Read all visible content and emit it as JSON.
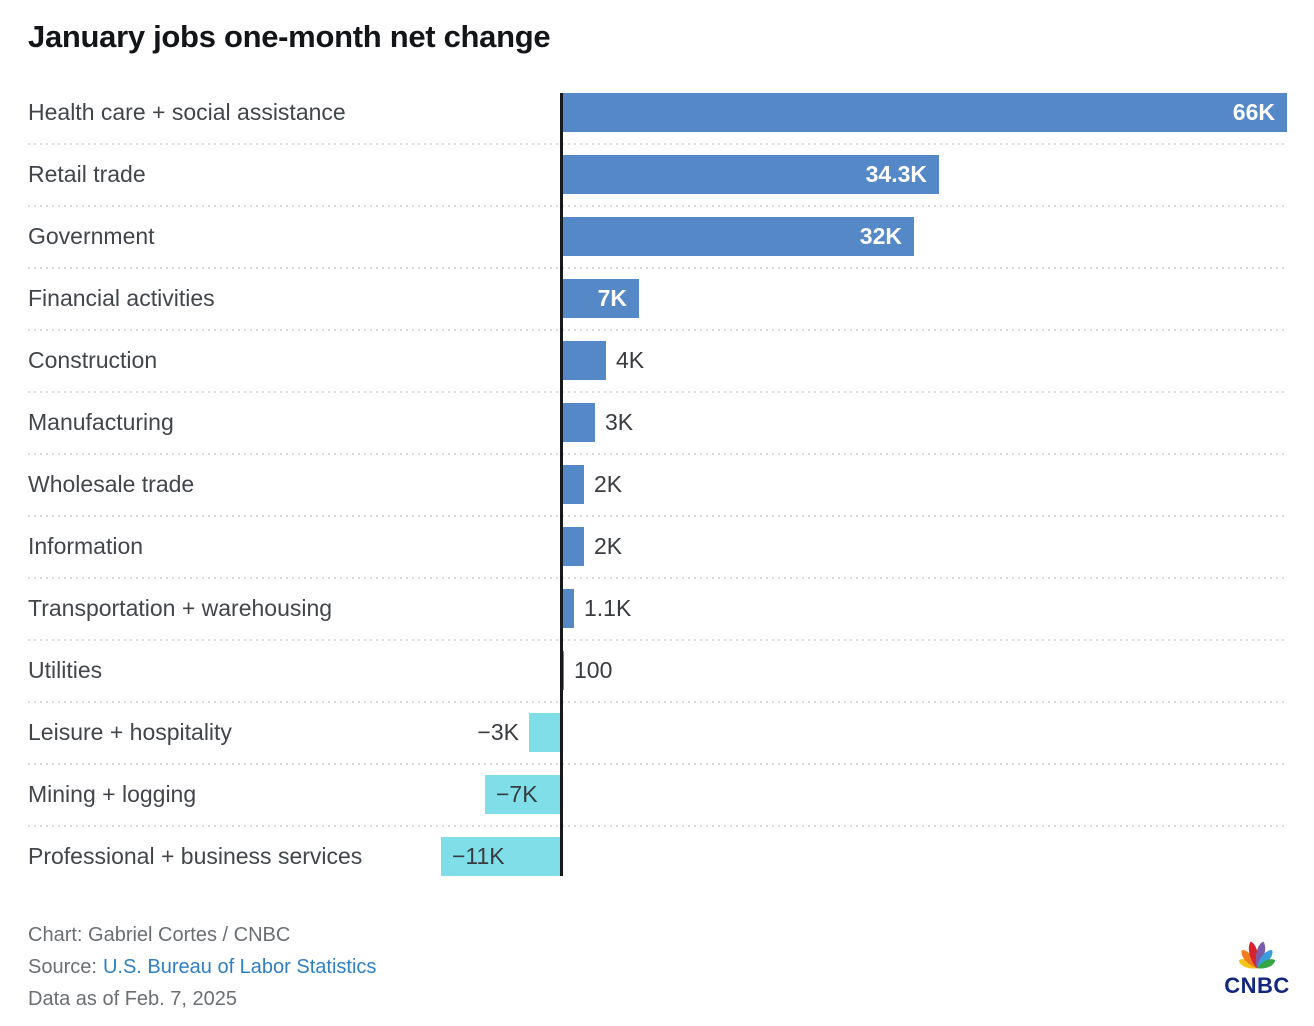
{
  "title": "January jobs one-month net change",
  "chart_data": {
    "type": "bar",
    "orientation": "horizontal",
    "value_unit": "net change in jobs (K = thousands)",
    "categories": [
      "Health care + social assistance",
      "Retail trade",
      "Government",
      "Financial activities",
      "Construction",
      "Manufacturing",
      "Wholesale trade",
      "Information",
      "Transportation + warehousing",
      "Utilities",
      "Leisure + hospitality",
      "Mining + logging",
      "Professional + business services"
    ],
    "values": [
      66,
      34.3,
      32,
      7,
      4,
      3,
      2,
      2,
      1.1,
      0.1,
      -3,
      -7,
      -11
    ],
    "value_labels": [
      "66K",
      "34.3K",
      "32K",
      "7K",
      "4K",
      "3K",
      "2K",
      "2K",
      "1.1K",
      "100",
      "−3K",
      "−7K",
      "−11K"
    ],
    "xlim": [
      -11,
      66
    ],
    "grid": "dotted row separators",
    "legend": "none",
    "positive_color": "#5588c7",
    "negative_color": "#7fdee8"
  },
  "footer": {
    "chart_credit": "Chart: Gabriel Cortes / CNBC",
    "source_label": "Source:",
    "source_link": "U.S. Bureau of Labor Statistics",
    "data_as_of": "Data as of Feb. 7, 2025"
  },
  "logo": {
    "text": "CNBC",
    "wordmark_color": "#12277e",
    "peacock_colors": [
      "#f5c515",
      "#f07c22",
      "#d6232e",
      "#7a5ca8",
      "#3a9ddb",
      "#36a546"
    ]
  },
  "colors": {
    "title": "#131518",
    "category_label": "#42464b",
    "value_dark": "#383c40",
    "value_light": "#ffffff",
    "axis": "#17191c",
    "separator": "#d9d9d9",
    "footer_text": "#6b6f73",
    "link": "#2e80c5",
    "background": "#ffffff"
  }
}
